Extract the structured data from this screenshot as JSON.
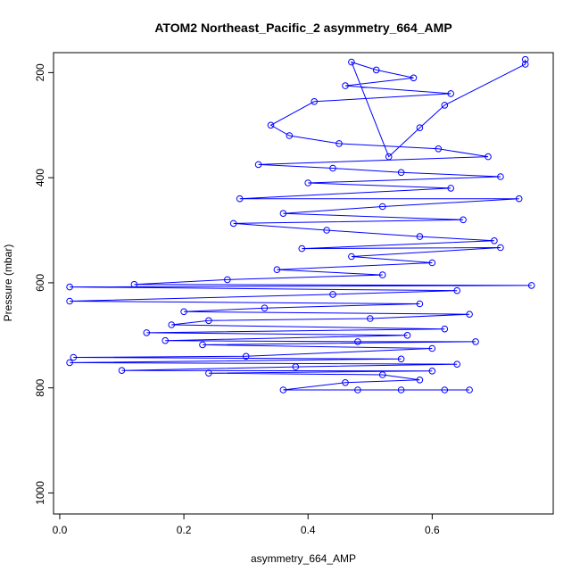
{
  "chart_data": {
    "type": "scatter",
    "title": "ATOM2 Northeast_Pacific_2 asymmetry_664_AMP",
    "xlabel": "asymmetry_664_AMP",
    "ylabel": "Pressure (mbar)",
    "xlim": [
      -0.01,
      0.795
    ],
    "ylim": [
      1040,
      162
    ],
    "y_reversed": true,
    "xticks": [
      0.0,
      0.2,
      0.4,
      0.6
    ],
    "xtick_labels": [
      "0.0",
      "0.2",
      "0.4",
      "0.6"
    ],
    "yticks": [
      200,
      400,
      600,
      800,
      1000
    ],
    "ytick_labels": [
      "200",
      "400",
      "600",
      "800",
      "1000"
    ],
    "grid": false,
    "legend": "none",
    "marker": "open-circle",
    "connected": true,
    "color": "#0000ff",
    "series": [
      {
        "values": [
          [
            0.75,
            175
          ],
          [
            0.75,
            184
          ],
          [
            0.62,
            262
          ],
          [
            0.58,
            305
          ],
          [
            0.53,
            360
          ],
          [
            0.47,
            180
          ],
          [
            0.51,
            195
          ],
          [
            0.57,
            210
          ],
          [
            0.46,
            225
          ],
          [
            0.63,
            240
          ],
          [
            0.41,
            255
          ],
          [
            0.34,
            300
          ],
          [
            0.37,
            320
          ],
          [
            0.45,
            335
          ],
          [
            0.61,
            345
          ],
          [
            0.69,
            360
          ],
          [
            0.32,
            375
          ],
          [
            0.44,
            382
          ],
          [
            0.55,
            390
          ],
          [
            0.71,
            398
          ],
          [
            0.4,
            410
          ],
          [
            0.63,
            420
          ],
          [
            0.29,
            440
          ],
          [
            0.74,
            440
          ],
          [
            0.52,
            455
          ],
          [
            0.36,
            468
          ],
          [
            0.65,
            480
          ],
          [
            0.28,
            487
          ],
          [
            0.43,
            500
          ],
          [
            0.58,
            512
          ],
          [
            0.7,
            520
          ],
          [
            0.39,
            535
          ],
          [
            0.71,
            533
          ],
          [
            0.47,
            550
          ],
          [
            0.6,
            562
          ],
          [
            0.35,
            575
          ],
          [
            0.52,
            585
          ],
          [
            0.27,
            594
          ],
          [
            0.12,
            603
          ],
          [
            0.76,
            605
          ],
          [
            0.016,
            608
          ],
          [
            0.64,
            615
          ],
          [
            0.44,
            622
          ],
          [
            0.016,
            635
          ],
          [
            0.58,
            640
          ],
          [
            0.33,
            648
          ],
          [
            0.2,
            655
          ],
          [
            0.66,
            660
          ],
          [
            0.5,
            668
          ],
          [
            0.24,
            672
          ],
          [
            0.18,
            680
          ],
          [
            0.62,
            688
          ],
          [
            0.14,
            695
          ],
          [
            0.56,
            700
          ],
          [
            0.17,
            710
          ],
          [
            0.48,
            712
          ],
          [
            0.67,
            712
          ],
          [
            0.23,
            718
          ],
          [
            0.6,
            725
          ],
          [
            0.3,
            740
          ],
          [
            0.022,
            742
          ],
          [
            0.55,
            745
          ],
          [
            0.016,
            752
          ],
          [
            0.64,
            755
          ],
          [
            0.38,
            760
          ],
          [
            0.1,
            767
          ],
          [
            0.6,
            768
          ],
          [
            0.24,
            772
          ],
          [
            0.52,
            775
          ],
          [
            0.58,
            785
          ],
          [
            0.46,
            790
          ],
          [
            0.36,
            804
          ],
          [
            0.62,
            804
          ],
          [
            0.48,
            804
          ],
          [
            0.66,
            804
          ],
          [
            0.55,
            804
          ]
        ]
      }
    ]
  }
}
